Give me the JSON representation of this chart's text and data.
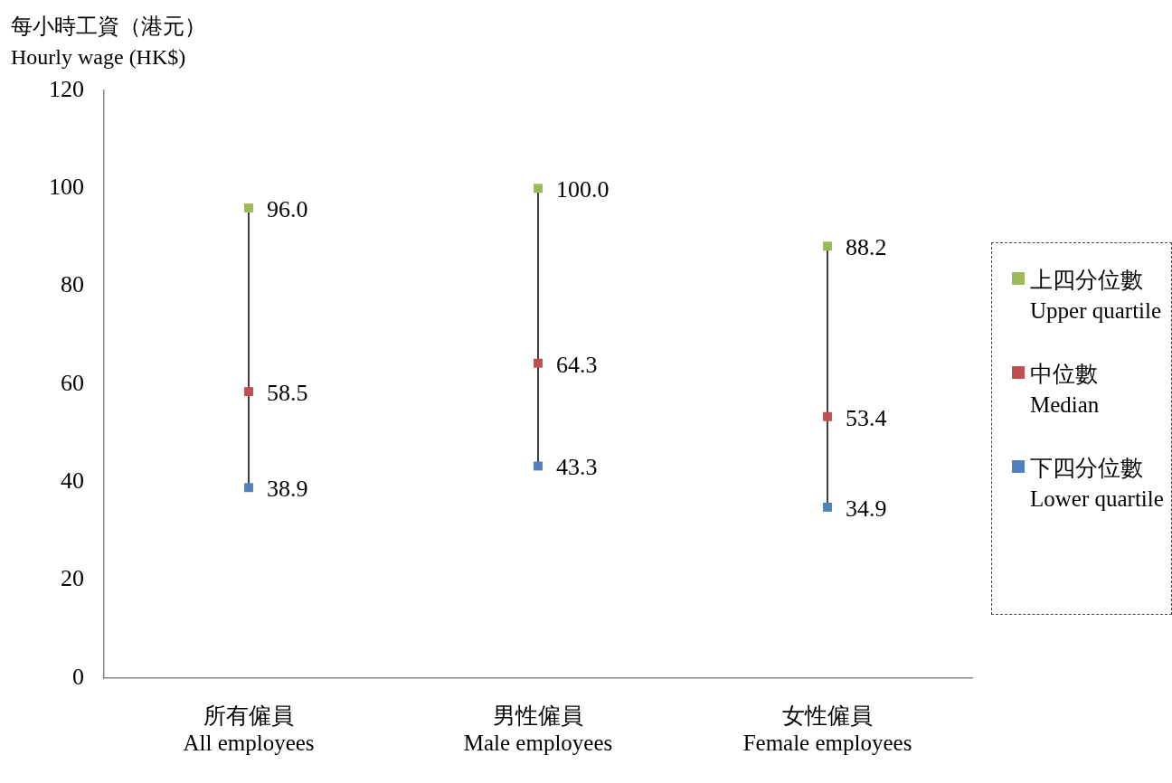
{
  "chart_data": {
    "type": "scatter",
    "ylabel": "每小時工資（港元）\nHourly wage (HK$)",
    "categories": [
      "所有僱員\nAll employees",
      "男性僱員\nMale employees",
      "女性僱員\nFemale employees"
    ],
    "series": [
      {
        "name": "上四分位數\nUpper quartile",
        "color": "#9bbb59",
        "values": [
          96.0,
          100.0,
          88.2
        ],
        "value_labels": [
          "96.0",
          "100.0",
          "88.2"
        ]
      },
      {
        "name": "中位數\nMedian",
        "color": "#c0504d",
        "values": [
          58.5,
          64.3,
          53.4
        ],
        "value_labels": [
          "58.5",
          "64.3",
          "53.4"
        ]
      },
      {
        "name": "下四分位數\nLower quartile",
        "color": "#4f81bd",
        "values": [
          38.9,
          43.3,
          34.9
        ],
        "value_labels": [
          "38.9",
          "43.3",
          "34.9"
        ]
      }
    ],
    "ylim": [
      0,
      120
    ],
    "yticks": [
      0,
      20,
      40,
      60,
      80,
      100,
      120
    ],
    "grid": false,
    "legend": "right",
    "marker": "square"
  }
}
